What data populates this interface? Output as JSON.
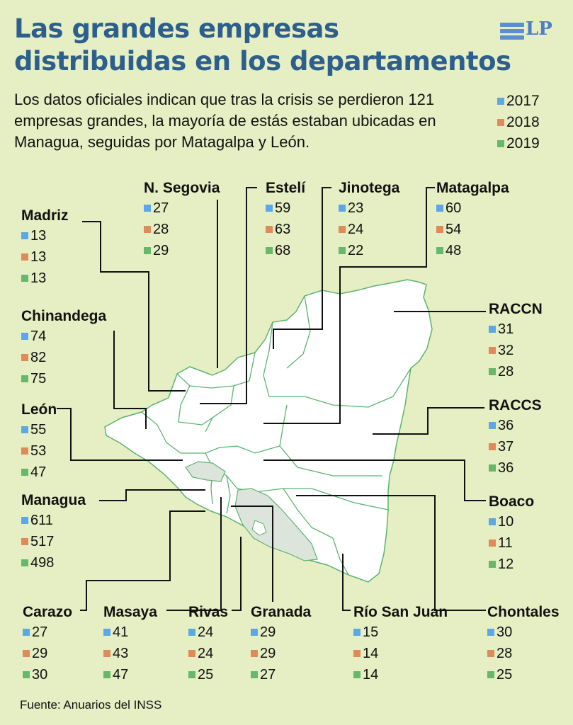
{
  "header": {
    "title_line1": "Las grandes empresas",
    "title_line2": "distribuidas en los departamentos",
    "logo_text": "LP"
  },
  "intro": "Los datos oficiales indican que tras la crisis se perdieron 121 empresas grandes, la mayoría de estás estaban ubicadas en Managua, seguidas por Matagalpa y León.",
  "legend": [
    {
      "label": "2017",
      "color": "#5aa9e6"
    },
    {
      "label": "2018",
      "color": "#e08a5a"
    },
    {
      "label": "2019",
      "color": "#67b86a"
    }
  ],
  "departments": [
    {
      "id": "n-segovia",
      "name": "N. Segovia",
      "values": [
        "27",
        "28",
        "29"
      ]
    },
    {
      "id": "esteli",
      "name": "Estelí",
      "values": [
        "59",
        "63",
        "68"
      ]
    },
    {
      "id": "jinotega",
      "name": "Jinotega",
      "values": [
        "23",
        "24",
        "22"
      ]
    },
    {
      "id": "matagalpa",
      "name": "Matagalpa",
      "values": [
        "60",
        "54",
        "48"
      ]
    },
    {
      "id": "madriz",
      "name": "Madriz",
      "values": [
        "13",
        "13",
        "13"
      ]
    },
    {
      "id": "raccn",
      "name": "RACCN",
      "values": [
        "31",
        "32",
        "28"
      ]
    },
    {
      "id": "chinandega",
      "name": "Chinandega",
      "values": [
        "74",
        "82",
        "75"
      ]
    },
    {
      "id": "raccs",
      "name": "RACCS",
      "values": [
        "36",
        "37",
        "36"
      ]
    },
    {
      "id": "leon",
      "name": "León",
      "values": [
        "55",
        "53",
        "47"
      ]
    },
    {
      "id": "boaco",
      "name": "Boaco",
      "values": [
        "10",
        "11",
        "12"
      ]
    },
    {
      "id": "managua",
      "name": "Managua",
      "values": [
        "611",
        "517",
        "498"
      ]
    },
    {
      "id": "carazo",
      "name": "Carazo",
      "values": [
        "27",
        "29",
        "30"
      ]
    },
    {
      "id": "masaya",
      "name": "Masaya",
      "values": [
        "41",
        "43",
        "47"
      ]
    },
    {
      "id": "rivas",
      "name": "Rivas",
      "values": [
        "24",
        "24",
        "25"
      ]
    },
    {
      "id": "granada",
      "name": "Granada",
      "values": [
        "29",
        "29",
        "27"
      ]
    },
    {
      "id": "rio-san-juan",
      "name": "Río San Juan",
      "values": [
        "15",
        "14",
        "14"
      ]
    },
    {
      "id": "chontales",
      "name": "Chontales",
      "values": [
        "30",
        "28",
        "25"
      ]
    }
  ],
  "source": "Fuente: Anuarios del INSS"
}
